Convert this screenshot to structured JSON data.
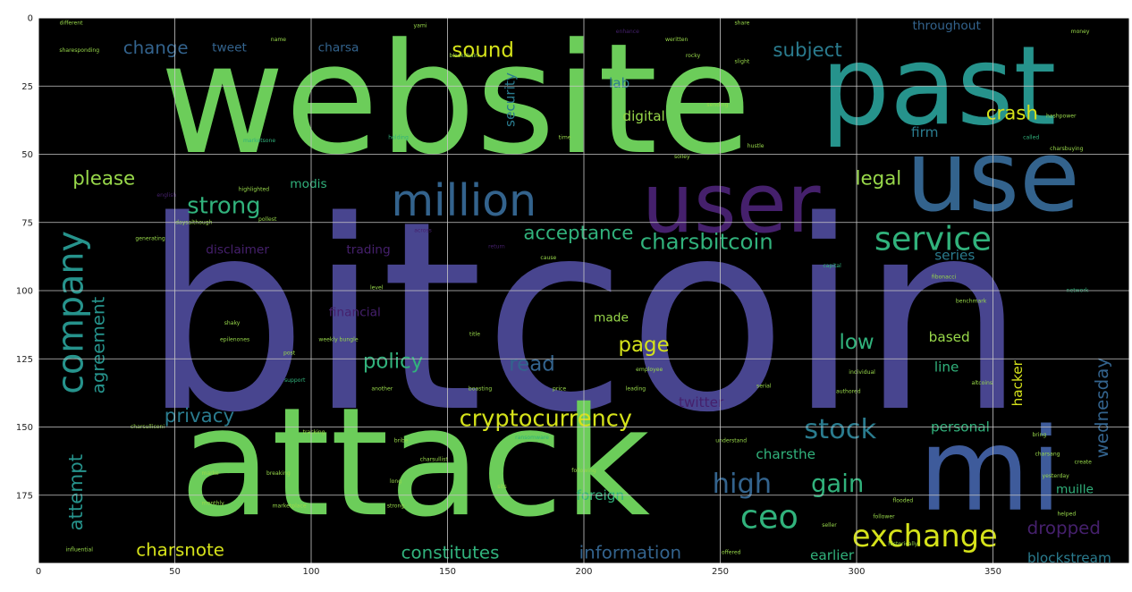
{
  "figure": {
    "background": "#ffffff",
    "plot_background": "#000000",
    "grid_color": "#c8c8c8",
    "tick_color": "#222222"
  },
  "axes": {
    "xlim": [
      0,
      400
    ],
    "ylim": [
      0,
      200
    ],
    "y_inverted": true,
    "grid": true,
    "x_ticks": [
      "0",
      "50",
      "100",
      "150",
      "200",
      "250",
      "300",
      "350"
    ],
    "y_ticks": [
      "0",
      "25",
      "50",
      "75",
      "100",
      "125",
      "150",
      "175"
    ]
  },
  "palette": {
    "green": "#6ccd5a",
    "blue": "#3e5b9b",
    "navy": "#48458f",
    "teal": "#26938c",
    "seafoam": "#31b27c",
    "cyan": "#2a7b8e",
    "purple": "#45206c",
    "yellow": "#d5e21a",
    "lime": "#98d84a",
    "slate": "#33638d"
  },
  "words": [
    {
      "text": "bitcoin",
      "x": 200,
      "y": 110,
      "size": 96,
      "color": "navy",
      "rotate": 0
    },
    {
      "text": "website",
      "x": 153,
      "y": 30,
      "size": 56,
      "color": "green",
      "rotate": 0
    },
    {
      "text": "attack",
      "x": 138,
      "y": 163,
      "size": 55,
      "color": "green",
      "rotate": 0
    },
    {
      "text": "past",
      "x": 330,
      "y": 25,
      "size": 40,
      "color": "teal",
      "rotate": 0
    },
    {
      "text": "use",
      "x": 350,
      "y": 58,
      "size": 36,
      "color": "slate",
      "rotate": 0
    },
    {
      "text": "mi",
      "x": 349,
      "y": 166,
      "size": 42,
      "color": "blue",
      "rotate": 0
    },
    {
      "text": "user",
      "x": 254,
      "y": 68,
      "size": 30,
      "color": "purple",
      "rotate": 0
    },
    {
      "text": "million",
      "x": 156,
      "y": 67,
      "size": 16,
      "color": "slate",
      "rotate": 0
    },
    {
      "text": "company",
      "x": 12,
      "y": 108,
      "size": 13,
      "color": "teal",
      "rotate": -90
    },
    {
      "text": "service",
      "x": 328,
      "y": 81,
      "size": 12,
      "color": "seafoam",
      "rotate": 0
    },
    {
      "text": "ceo",
      "x": 268,
      "y": 183,
      "size": 12,
      "color": "seafoam",
      "rotate": 0
    },
    {
      "text": "exchange",
      "x": 325,
      "y": 190,
      "size": 11,
      "color": "yellow",
      "rotate": 0
    },
    {
      "text": "cryptocurrency",
      "x": 186,
      "y": 147,
      "size": 8.4,
      "color": "yellow",
      "rotate": 0
    },
    {
      "text": "charsbitcoin",
      "x": 245,
      "y": 82,
      "size": 8,
      "color": "seafoam",
      "rotate": 0
    },
    {
      "text": "acceptance",
      "x": 198,
      "y": 79,
      "size": 7,
      "color": "seafoam",
      "rotate": 0
    },
    {
      "text": "stock",
      "x": 294,
      "y": 151,
      "size": 10,
      "color": "cyan",
      "rotate": 0
    },
    {
      "text": "high",
      "x": 258,
      "y": 171,
      "size": 10,
      "color": "slate",
      "rotate": 0
    },
    {
      "text": "gain",
      "x": 293,
      "y": 171,
      "size": 9,
      "color": "seafoam",
      "rotate": 0
    },
    {
      "text": "strong",
      "x": 68,
      "y": 69,
      "size": 8.5,
      "color": "seafoam",
      "rotate": 0
    },
    {
      "text": "policy",
      "x": 130,
      "y": 126,
      "size": 7.5,
      "color": "seafoam",
      "rotate": 0
    },
    {
      "text": "read",
      "x": 181,
      "y": 127,
      "size": 7.5,
      "color": "slate",
      "rotate": 0
    },
    {
      "text": "page",
      "x": 222,
      "y": 120,
      "size": 7.5,
      "color": "yellow",
      "rotate": 0
    },
    {
      "text": "low",
      "x": 300,
      "y": 119,
      "size": 7.5,
      "color": "seafoam",
      "rotate": 0
    },
    {
      "text": "privacy",
      "x": 59,
      "y": 146,
      "size": 7,
      "color": "cyan",
      "rotate": 0
    },
    {
      "text": "agreement",
      "x": 22,
      "y": 120,
      "size": 6.5,
      "color": "teal",
      "rotate": -90
    },
    {
      "text": "attempt",
      "x": 14,
      "y": 174,
      "size": 7,
      "color": "teal",
      "rotate": -90
    },
    {
      "text": "sound",
      "x": 163,
      "y": 12,
      "size": 7.5,
      "color": "yellow",
      "rotate": 0
    },
    {
      "text": "subject",
      "x": 282,
      "y": 12,
      "size": 7,
      "color": "cyan",
      "rotate": 0
    },
    {
      "text": "crash",
      "x": 357,
      "y": 35,
      "size": 7,
      "color": "yellow",
      "rotate": 0
    },
    {
      "text": "please",
      "x": 24,
      "y": 59,
      "size": 7,
      "color": "lime",
      "rotate": 0
    },
    {
      "text": "legal",
      "x": 308,
      "y": 59,
      "size": 7,
      "color": "lime",
      "rotate": 0
    },
    {
      "text": "change",
      "x": 43,
      "y": 11,
      "size": 6.5,
      "color": "slate",
      "rotate": 0
    },
    {
      "text": "wednesday",
      "x": 390,
      "y": 143,
      "size": 6.5,
      "color": "slate",
      "rotate": -90
    },
    {
      "text": "dropped",
      "x": 376,
      "y": 187,
      "size": 6.5,
      "color": "purple",
      "rotate": 0
    },
    {
      "text": "information",
      "x": 217,
      "y": 196,
      "size": 6.5,
      "color": "slate",
      "rotate": 0
    },
    {
      "text": "constitutes",
      "x": 151,
      "y": 196,
      "size": 6.5,
      "color": "seafoam",
      "rotate": 0
    },
    {
      "text": "charsnote",
      "x": 52,
      "y": 195,
      "size": 6.5,
      "color": "yellow",
      "rotate": 0
    },
    {
      "text": "security",
      "x": 173,
      "y": 30,
      "size": 5,
      "color": "cyan",
      "rotate": -90
    },
    {
      "text": "digital",
      "x": 222,
      "y": 36,
      "size": 5,
      "color": "lime",
      "rotate": 0
    },
    {
      "text": "based",
      "x": 334,
      "y": 117,
      "size": 5,
      "color": "lime",
      "rotate": 0
    },
    {
      "text": "personal",
      "x": 338,
      "y": 150,
      "size": 5,
      "color": "seafoam",
      "rotate": 0
    },
    {
      "text": "hacker",
      "x": 359,
      "y": 134,
      "size": 5,
      "color": "yellow",
      "rotate": -90
    },
    {
      "text": "twitter",
      "x": 243,
      "y": 141,
      "size": 5,
      "color": "purple",
      "rotate": 0
    },
    {
      "text": "charsthe",
      "x": 274,
      "y": 160,
      "size": 5,
      "color": "seafoam",
      "rotate": 0
    },
    {
      "text": "foreign",
      "x": 206,
      "y": 175,
      "size": 5,
      "color": "seafoam",
      "rotate": 0
    },
    {
      "text": "earlier",
      "x": 291,
      "y": 197,
      "size": 5,
      "color": "seafoam",
      "rotate": 0
    },
    {
      "text": "blockstream",
      "x": 378,
      "y": 198,
      "size": 5,
      "color": "cyan",
      "rotate": 0
    },
    {
      "text": "line",
      "x": 333,
      "y": 128,
      "size": 5,
      "color": "seafoam",
      "rotate": 0
    },
    {
      "text": "series",
      "x": 336,
      "y": 87,
      "size": 5,
      "color": "cyan",
      "rotate": 0
    },
    {
      "text": "firm",
      "x": 325,
      "y": 42,
      "size": 5,
      "color": "cyan",
      "rotate": 0
    },
    {
      "text": "lab",
      "x": 213,
      "y": 24,
      "size": 5,
      "color": "cyan",
      "rotate": 0
    },
    {
      "text": "made",
      "x": 210,
      "y": 110,
      "size": 4.5,
      "color": "lime",
      "rotate": 0
    },
    {
      "text": "modis",
      "x": 99,
      "y": 61,
      "size": 4.5,
      "color": "seafoam",
      "rotate": 0
    },
    {
      "text": "charsa",
      "x": 110,
      "y": 11,
      "size": 4.5,
      "color": "slate",
      "rotate": 0
    },
    {
      "text": "tweet",
      "x": 70,
      "y": 11,
      "size": 4.5,
      "color": "slate",
      "rotate": 0
    },
    {
      "text": "throughout",
      "x": 333,
      "y": 3,
      "size": 4.5,
      "color": "slate",
      "rotate": 0
    },
    {
      "text": "disclaimer",
      "x": 73,
      "y": 85,
      "size": 4.5,
      "color": "purple",
      "rotate": 0
    },
    {
      "text": "trading",
      "x": 121,
      "y": 85,
      "size": 4.5,
      "color": "purple",
      "rotate": 0
    },
    {
      "text": "financial",
      "x": 116,
      "y": 108,
      "size": 4.5,
      "color": "purple",
      "rotate": 0
    },
    {
      "text": "muille",
      "x": 380,
      "y": 173,
      "size": 4.5,
      "color": "seafoam",
      "rotate": 0
    },
    {
      "text": "different",
      "x": 12,
      "y": 2,
      "size": 2,
      "color": "lime",
      "rotate": 0
    },
    {
      "text": "sharesponding",
      "x": 15,
      "y": 12,
      "size": 2,
      "color": "lime",
      "rotate": 0
    },
    {
      "text": "marketsone",
      "x": 81,
      "y": 45,
      "size": 2,
      "color": "seafoam",
      "rotate": 0
    },
    {
      "text": "holding",
      "x": 132,
      "y": 44,
      "size": 2,
      "color": "seafoam",
      "rotate": 0
    },
    {
      "text": "time",
      "x": 193,
      "y": 44,
      "size": 2,
      "color": "lime",
      "rotate": 0
    },
    {
      "text": "solley",
      "x": 236,
      "y": 51,
      "size": 2,
      "color": "lime",
      "rotate": 0
    },
    {
      "text": "hustle",
      "x": 263,
      "y": 47,
      "size": 2,
      "color": "lime",
      "rotate": 0
    },
    {
      "text": "hashpower",
      "x": 375,
      "y": 36,
      "size": 2,
      "color": "lime",
      "rotate": 0
    },
    {
      "text": "charsbuying",
      "x": 377,
      "y": 48,
      "size": 2,
      "color": "lime",
      "rotate": 0
    },
    {
      "text": "called",
      "x": 364,
      "y": 44,
      "size": 2,
      "color": "seafoam",
      "rotate": 0
    },
    {
      "text": "sending",
      "x": 249,
      "y": 32,
      "size": 2,
      "color": "lime",
      "rotate": 0
    },
    {
      "text": "english",
      "x": 47,
      "y": 65,
      "size": 2,
      "color": "purple",
      "rotate": 0
    },
    {
      "text": "highlighted",
      "x": 79,
      "y": 63,
      "size": 2,
      "color": "lime",
      "rotate": 0
    },
    {
      "text": "daysalthough",
      "x": 57,
      "y": 75,
      "size": 2,
      "color": "lime",
      "rotate": 0
    },
    {
      "text": "generating",
      "x": 41,
      "y": 81,
      "size": 2,
      "color": "lime",
      "rotate": 0
    },
    {
      "text": "pollest",
      "x": 84,
      "y": 74,
      "size": 2,
      "color": "lime",
      "rotate": 0
    },
    {
      "text": "across",
      "x": 141,
      "y": 78,
      "size": 2,
      "color": "purple",
      "rotate": 0
    },
    {
      "text": "return",
      "x": 168,
      "y": 84,
      "size": 2,
      "color": "purple",
      "rotate": 0
    },
    {
      "text": "cause",
      "x": 187,
      "y": 88,
      "size": 2,
      "color": "lime",
      "rotate": 0
    },
    {
      "text": "capital",
      "x": 291,
      "y": 91,
      "size": 2,
      "color": "seafoam",
      "rotate": 0
    },
    {
      "text": "fibonacci",
      "x": 332,
      "y": 95,
      "size": 2,
      "color": "lime",
      "rotate": 0
    },
    {
      "text": "network",
      "x": 381,
      "y": 100,
      "size": 2,
      "color": "seafoam",
      "rotate": 0
    },
    {
      "text": "benchmark",
      "x": 342,
      "y": 104,
      "size": 2,
      "color": "lime",
      "rotate": 0
    },
    {
      "text": "level",
      "x": 124,
      "y": 99,
      "size": 2,
      "color": "lime",
      "rotate": 0
    },
    {
      "text": "shaky",
      "x": 71,
      "y": 112,
      "size": 2,
      "color": "lime",
      "rotate": 0
    },
    {
      "text": "epilenones",
      "x": 72,
      "y": 118,
      "size": 2,
      "color": "lime",
      "rotate": 0
    },
    {
      "text": "weekly bungle",
      "x": 110,
      "y": 118,
      "size": 2,
      "color": "lime",
      "rotate": 0
    },
    {
      "text": "post",
      "x": 92,
      "y": 123,
      "size": 2,
      "color": "lime",
      "rotate": 0
    },
    {
      "text": "support",
      "x": 94,
      "y": 133,
      "size": 2,
      "color": "seafoam",
      "rotate": 0
    },
    {
      "text": "title",
      "x": 160,
      "y": 116,
      "size": 2,
      "color": "lime",
      "rotate": 0
    },
    {
      "text": "another",
      "x": 126,
      "y": 136,
      "size": 2,
      "color": "lime",
      "rotate": 0
    },
    {
      "text": "boasting",
      "x": 162,
      "y": 136,
      "size": 2,
      "color": "lime",
      "rotate": 0
    },
    {
      "text": "price",
      "x": 191,
      "y": 136,
      "size": 2,
      "color": "lime",
      "rotate": 0
    },
    {
      "text": "leading",
      "x": 219,
      "y": 136,
      "size": 2,
      "color": "lime",
      "rotate": 0
    },
    {
      "text": "serial",
      "x": 266,
      "y": 135,
      "size": 2,
      "color": "lime",
      "rotate": 0
    },
    {
      "text": "individual",
      "x": 302,
      "y": 130,
      "size": 2,
      "color": "lime",
      "rotate": 0
    },
    {
      "text": "authored",
      "x": 297,
      "y": 137,
      "size": 2,
      "color": "lime",
      "rotate": 0
    },
    {
      "text": "altcoins",
      "x": 346,
      "y": 134,
      "size": 2,
      "color": "lime",
      "rotate": 0
    },
    {
      "text": "employee",
      "x": 224,
      "y": 129,
      "size": 2,
      "color": "lime",
      "rotate": 0
    },
    {
      "text": "charsulliceni",
      "x": 40,
      "y": 150,
      "size": 2,
      "color": "lime",
      "rotate": 0
    },
    {
      "text": "tracking",
      "x": 101,
      "y": 152,
      "size": 2,
      "color": "lime",
      "rotate": 0
    },
    {
      "text": "bribe",
      "x": 133,
      "y": 155,
      "size": 2,
      "color": "lime",
      "rotate": 0
    },
    {
      "text": "ransomware",
      "x": 181,
      "y": 154,
      "size": 2,
      "color": "seafoam",
      "rotate": 0
    },
    {
      "text": "understand",
      "x": 254,
      "y": 155,
      "size": 2,
      "color": "lime",
      "rotate": 0
    },
    {
      "text": "marke",
      "x": 63,
      "y": 167,
      "size": 2,
      "color": "lime",
      "rotate": 0
    },
    {
      "text": "breaking",
      "x": 88,
      "y": 167,
      "size": 2,
      "color": "lime",
      "rotate": 0
    },
    {
      "text": "charsullist",
      "x": 145,
      "y": 162,
      "size": 2,
      "color": "lime",
      "rotate": 0
    },
    {
      "text": "following",
      "x": 200,
      "y": 166,
      "size": 2,
      "color": "lime",
      "rotate": 0
    },
    {
      "text": "long",
      "x": 131,
      "y": 170,
      "size": 2,
      "color": "lime",
      "rotate": 0
    },
    {
      "text": "strong",
      "x": 131,
      "y": 179,
      "size": 2,
      "color": "lime",
      "rotate": 0
    },
    {
      "text": "sits",
      "x": 170,
      "y": 172,
      "size": 2,
      "color": "lime",
      "rotate": 0
    },
    {
      "text": "flooded",
      "x": 317,
      "y": 177,
      "size": 2,
      "color": "lime",
      "rotate": 0
    },
    {
      "text": "follower",
      "x": 310,
      "y": 183,
      "size": 2,
      "color": "lime",
      "rotate": 0
    },
    {
      "text": "helped",
      "x": 377,
      "y": 182,
      "size": 2,
      "color": "lime",
      "rotate": 0
    },
    {
      "text": "yesterday",
      "x": 373,
      "y": 168,
      "size": 2,
      "color": "lime",
      "rotate": 0
    },
    {
      "text": "charsang",
      "x": 370,
      "y": 160,
      "size": 2,
      "color": "lime",
      "rotate": 0
    },
    {
      "text": "bring",
      "x": 367,
      "y": 153,
      "size": 2,
      "color": "lime",
      "rotate": 0
    },
    {
      "text": "create",
      "x": 383,
      "y": 163,
      "size": 2,
      "color": "lime",
      "rotate": 0
    },
    {
      "text": "offered",
      "x": 254,
      "y": 196,
      "size": 2,
      "color": "lime",
      "rotate": 0
    },
    {
      "text": "historically",
      "x": 317,
      "y": 193,
      "size": 2,
      "color": "lime",
      "rotate": 0
    },
    {
      "text": "influential",
      "x": 15,
      "y": 195,
      "size": 2,
      "color": "lime",
      "rotate": 0
    },
    {
      "text": "monthly",
      "x": 64,
      "y": 178,
      "size": 2,
      "color": "lime",
      "rotate": 0
    },
    {
      "text": "marketplace",
      "x": 92,
      "y": 179,
      "size": 2,
      "color": "lime",
      "rotate": 0
    },
    {
      "text": "seller",
      "x": 290,
      "y": 186,
      "size": 2,
      "color": "lime",
      "rotate": 0
    },
    {
      "text": "money",
      "x": 382,
      "y": 5,
      "size": 2,
      "color": "lime",
      "rotate": 0
    },
    {
      "text": "share",
      "x": 258,
      "y": 2,
      "size": 2,
      "color": "lime",
      "rotate": 0
    },
    {
      "text": "weritten",
      "x": 234,
      "y": 8,
      "size": 2,
      "color": "lime",
      "rotate": 0
    },
    {
      "text": "blockchain",
      "x": 156,
      "y": 14,
      "size": 2,
      "color": "lime",
      "rotate": 0
    },
    {
      "text": "rocky",
      "x": 240,
      "y": 14,
      "size": 2,
      "color": "lime",
      "rotate": 0
    },
    {
      "text": "slight",
      "x": 258,
      "y": 16,
      "size": 2,
      "color": "lime",
      "rotate": 0
    },
    {
      "text": "yami",
      "x": 140,
      "y": 3,
      "size": 2,
      "color": "lime",
      "rotate": 0
    },
    {
      "text": "name",
      "x": 88,
      "y": 8,
      "size": 2,
      "color": "lime",
      "rotate": 0
    },
    {
      "text": "enhance",
      "x": 216,
      "y": 5,
      "size": 2,
      "color": "purple",
      "rotate": 0
    }
  ]
}
